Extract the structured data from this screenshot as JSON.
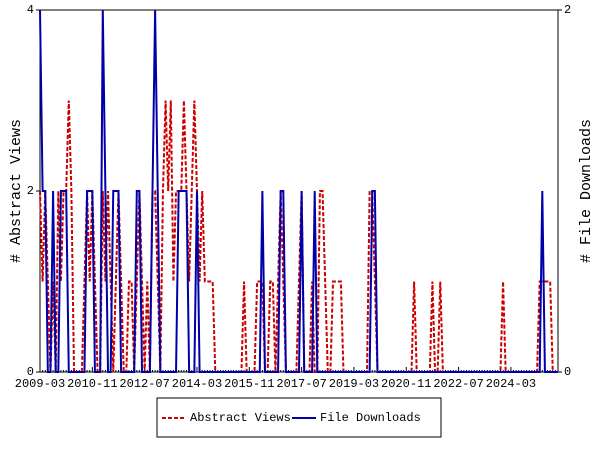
{
  "chart_data": {
    "type": "line",
    "categories": [
      "2009-03",
      null,
      null,
      null,
      null,
      null,
      null,
      null,
      null,
      null,
      null,
      null,
      null,
      null,
      null,
      null,
      null,
      null,
      null,
      null,
      "2010-11",
      null,
      null,
      null,
      null,
      null,
      null,
      null,
      null,
      null,
      null,
      null,
      null,
      null,
      null,
      null,
      null,
      null,
      null,
      null,
      "2012-07",
      null,
      null,
      null,
      null,
      null,
      null,
      null,
      null,
      null,
      null,
      null,
      null,
      null,
      null,
      null,
      null,
      null,
      null,
      null,
      "2014-03",
      null,
      null,
      null,
      null,
      null,
      null,
      null,
      null,
      null,
      null,
      null,
      null,
      null,
      null,
      null,
      null,
      null,
      null,
      null,
      "2015-11",
      null,
      null,
      null,
      null,
      null,
      null,
      null,
      null,
      null,
      null,
      null,
      null,
      null,
      null,
      null,
      null,
      null,
      null,
      null,
      "2017-07",
      null,
      null,
      null,
      null,
      null,
      null,
      null,
      null,
      null,
      null,
      null,
      null,
      null,
      null,
      null,
      null,
      null,
      null,
      null,
      "2019-03",
      null,
      null,
      null,
      null,
      null,
      null,
      null,
      null,
      null,
      null,
      null,
      null,
      null,
      null,
      null,
      null,
      null,
      null,
      null,
      "2020-11",
      null,
      null,
      null,
      null,
      null,
      null,
      null,
      null,
      null,
      null,
      null,
      null,
      null,
      null,
      null,
      null,
      null,
      null,
      null,
      "2022-07",
      null,
      null,
      null,
      null,
      null,
      null,
      null,
      null,
      null,
      null,
      null,
      null,
      null,
      null,
      null,
      null,
      null,
      null,
      null,
      "2024-03",
      null,
      null,
      null,
      null,
      null,
      null,
      null,
      null,
      null,
      null,
      null,
      null,
      null,
      null,
      null,
      null,
      null,
      null
    ],
    "series": [
      {
        "name": "Abstract Views",
        "color": "#cc0000",
        "dashed": true,
        "values": [
          2,
          1,
          2,
          1,
          0,
          1,
          0,
          2,
          1,
          2,
          2,
          3,
          2,
          0,
          0,
          0,
          0,
          1,
          2,
          1,
          2,
          1,
          0,
          0,
          2,
          1,
          2,
          1,
          0,
          1,
          2,
          1,
          0,
          0,
          1,
          1,
          0,
          1,
          2,
          1,
          0,
          1,
          0,
          2,
          2,
          1,
          0,
          2,
          3,
          2,
          3,
          1,
          2,
          2,
          2,
          3,
          2,
          1,
          2,
          3,
          2,
          1,
          2,
          1,
          1,
          1,
          1,
          0,
          0,
          0,
          0,
          0,
          0,
          0,
          0,
          0,
          0,
          0,
          1,
          0,
          0,
          0,
          0,
          1,
          1,
          1,
          0,
          0,
          1,
          1,
          0,
          1,
          2,
          1,
          0,
          0,
          0,
          0,
          0,
          1,
          2,
          0,
          0,
          0,
          1,
          0,
          0,
          2,
          2,
          1,
          0,
          0,
          1,
          1,
          1,
          1,
          0,
          0,
          0,
          0,
          0,
          0,
          0,
          0,
          0,
          0,
          2,
          2,
          1,
          0,
          0,
          0,
          0,
          0,
          0,
          0,
          0,
          0,
          0,
          0,
          0,
          0,
          0,
          1,
          0,
          0,
          0,
          0,
          0,
          0,
          1,
          0,
          0,
          1,
          0,
          0,
          0,
          0,
          0,
          0,
          0,
          0,
          0,
          0,
          0,
          0,
          0,
          0,
          0,
          0,
          0,
          0,
          0,
          0,
          0,
          0,
          0,
          1,
          0,
          0,
          0,
          0,
          0,
          0,
          0,
          0,
          0,
          0,
          0,
          0,
          0,
          1,
          1,
          1,
          1,
          1,
          0,
          0,
          0
        ]
      },
      {
        "name": "File Downloads",
        "color": "#0000aa",
        "axis": "y2",
        "values": [
          2,
          1,
          1,
          0,
          0,
          1,
          0,
          0,
          1,
          1,
          1,
          0,
          0,
          0,
          0,
          0,
          0,
          0,
          1,
          1,
          1,
          0,
          0,
          0,
          2,
          1,
          0,
          0,
          1,
          1,
          1,
          0,
          0,
          0,
          0,
          0,
          0,
          1,
          1,
          0,
          0,
          0,
          0,
          1,
          2,
          1,
          0,
          0,
          0,
          0,
          0,
          0,
          0,
          1,
          1,
          1,
          1,
          0,
          0,
          0,
          1,
          0,
          0,
          0,
          0,
          0,
          0,
          0,
          0,
          0,
          0,
          0,
          0,
          0,
          0,
          0,
          0,
          0,
          0,
          0,
          0,
          0,
          0,
          0,
          0,
          1,
          0,
          0,
          0,
          0,
          0,
          0,
          1,
          1,
          0,
          0,
          0,
          0,
          0,
          0,
          1,
          0,
          0,
          0,
          0,
          1,
          0,
          0,
          0,
          0,
          0,
          0,
          0,
          0,
          0,
          0,
          0,
          0,
          0,
          0,
          0,
          0,
          0,
          0,
          0,
          0,
          0,
          1,
          1,
          0,
          0,
          0,
          0,
          0,
          0,
          0,
          0,
          0,
          0,
          0,
          0,
          0,
          0,
          0,
          0,
          0,
          0,
          0,
          0,
          0,
          0,
          0,
          0,
          0,
          0,
          0,
          0,
          0,
          0,
          0,
          0,
          0,
          0,
          0,
          0,
          0,
          0,
          0,
          0,
          0,
          0,
          0,
          0,
          0,
          0,
          0,
          0,
          0,
          0,
          0,
          0,
          0,
          0,
          0,
          0,
          0,
          0,
          0,
          0,
          0,
          0,
          0,
          1,
          0,
          0,
          0,
          0,
          0,
          0
        ]
      }
    ],
    "ylabel": "# Abstract Views",
    "y2label": "# File Downloads",
    "ylim": [
      0,
      4
    ],
    "yticks": [
      0,
      2,
      4
    ],
    "y2lim": [
      0,
      2
    ],
    "y2ticks": [
      0,
      2
    ],
    "legend": "bottom"
  }
}
